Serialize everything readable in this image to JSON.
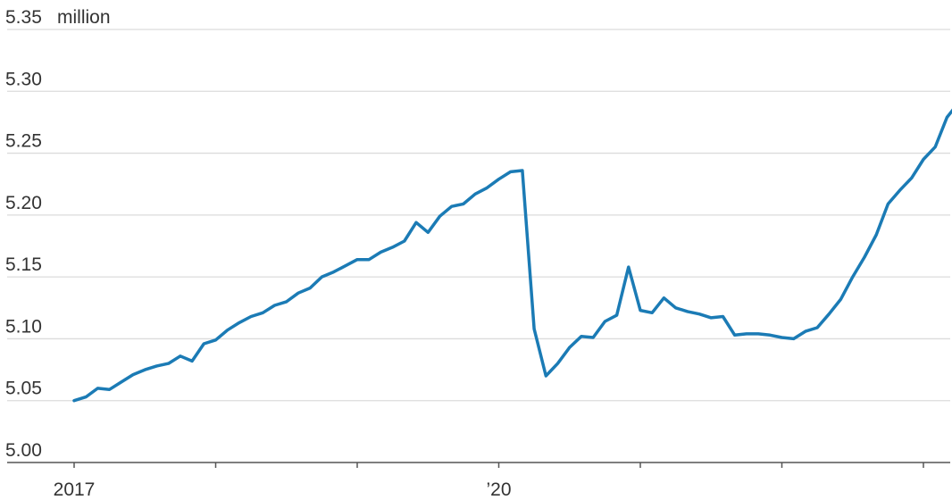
{
  "chart_data": {
    "type": "line",
    "unit_label": "million",
    "ylim": [
      5.0,
      5.35
    ],
    "yticks": [
      {
        "value": 5.35,
        "label": "5.35"
      },
      {
        "value": 5.3,
        "label": "5.30"
      },
      {
        "value": 5.25,
        "label": "5.25"
      },
      {
        "value": 5.2,
        "label": "5.20"
      },
      {
        "value": 5.15,
        "label": "5.15"
      },
      {
        "value": 5.1,
        "label": "5.10"
      },
      {
        "value": 5.05,
        "label": "5.05"
      },
      {
        "value": 5.0,
        "label": "5.00"
      }
    ],
    "xlim": [
      "2017-01",
      "2023-05"
    ],
    "xticks": [
      {
        "x": "2017-01",
        "label": "2017"
      },
      {
        "x": "2018-01",
        "label": ""
      },
      {
        "x": "2019-01",
        "label": ""
      },
      {
        "x": "2020-01",
        "label": "’20"
      },
      {
        "x": "2021-01",
        "label": ""
      },
      {
        "x": "2022-01",
        "label": ""
      },
      {
        "x": "2023-01",
        "label": ""
      }
    ],
    "grid": true,
    "color": "#1b7bb5",
    "series": [
      {
        "x": [
          "2017-01",
          "2017-02",
          "2017-03",
          "2017-04",
          "2017-05",
          "2017-06",
          "2017-07",
          "2017-08",
          "2017-09",
          "2017-10",
          "2017-11",
          "2017-12",
          "2018-01",
          "2018-02",
          "2018-03",
          "2018-04",
          "2018-05",
          "2018-06",
          "2018-07",
          "2018-08",
          "2018-09",
          "2018-10",
          "2018-11",
          "2018-12",
          "2019-01",
          "2019-02",
          "2019-03",
          "2019-04",
          "2019-05",
          "2019-06",
          "2019-07",
          "2019-08",
          "2019-09",
          "2019-10",
          "2019-11",
          "2019-12",
          "2020-01",
          "2020-02",
          "2020-03",
          "2020-04",
          "2020-05",
          "2020-06",
          "2020-07",
          "2020-08",
          "2020-09",
          "2020-10",
          "2020-11",
          "2020-12",
          "2021-01",
          "2021-02",
          "2021-03",
          "2021-04",
          "2021-05",
          "2021-06",
          "2021-07",
          "2021-08",
          "2021-09",
          "2021-10",
          "2021-11",
          "2021-12",
          "2022-01",
          "2022-02",
          "2022-03",
          "2022-04",
          "2022-05",
          "2022-06",
          "2022-07",
          "2022-08",
          "2022-09",
          "2022-10",
          "2022-11",
          "2022-12",
          "2023-01",
          "2023-02",
          "2023-03",
          "2023-04",
          "2023-05"
        ],
        "values": [
          5.05,
          5.053,
          5.06,
          5.059,
          5.065,
          5.071,
          5.075,
          5.078,
          5.08,
          5.086,
          5.082,
          5.096,
          5.099,
          5.107,
          5.113,
          5.118,
          5.121,
          5.127,
          5.13,
          5.137,
          5.141,
          5.15,
          5.154,
          5.159,
          5.164,
          5.164,
          5.17,
          5.174,
          5.179,
          5.194,
          5.186,
          5.199,
          5.207,
          5.209,
          5.217,
          5.222,
          5.229,
          5.235,
          5.236,
          5.108,
          5.07,
          5.08,
          5.093,
          5.102,
          5.101,
          5.114,
          5.119,
          5.158,
          5.123,
          5.121,
          5.133,
          5.125,
          5.122,
          5.12,
          5.117,
          5.118,
          5.103,
          5.104,
          5.104,
          5.103,
          5.101,
          5.1,
          5.106,
          5.109,
          5.12,
          5.132,
          5.15,
          5.166,
          5.184,
          5.209,
          5.22,
          5.23,
          5.245,
          5.255,
          5.279,
          5.291,
          5.291
        ]
      }
    ]
  }
}
